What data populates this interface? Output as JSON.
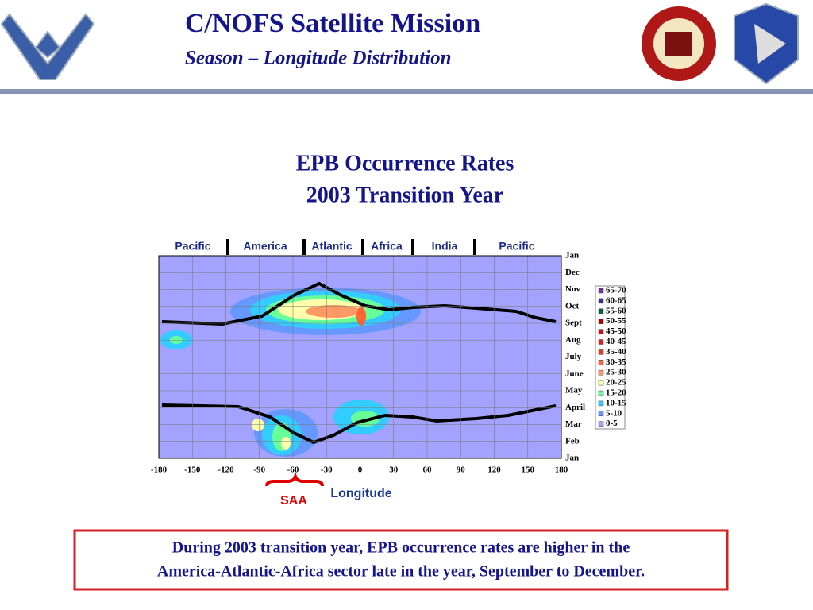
{
  "header": {
    "title": "C/NOFS Satellite Mission",
    "subtitle": "Season – Longitude Distribution"
  },
  "chart_data": {
    "type": "contour",
    "title": "EPB Occurrence Rates",
    "subtitle": "2003  Transition Year",
    "regions": [
      "Pacific",
      "America",
      "Atlantic",
      "Africa",
      "India",
      "Pacific"
    ],
    "xlim": [
      -180,
      180
    ],
    "xticks": [
      -180,
      -150,
      -120,
      -90,
      -60,
      -30,
      0,
      30,
      60,
      90,
      120,
      150,
      180
    ],
    "xlabel": "Longitude",
    "categories": [
      "Jan",
      "Feb",
      "Mar",
      "April",
      "May",
      "June",
      "July",
      "Aug",
      "Sept",
      "Oct",
      "Nov",
      "Dec",
      "Jan"
    ],
    "legend": [
      {
        "label": "65-70",
        "color": "#7030a0"
      },
      {
        "label": "60-65",
        "color": "#303090"
      },
      {
        "label": "55-60",
        "color": "#006633"
      },
      {
        "label": "50-55",
        "color": "#b00000"
      },
      {
        "label": "45-50",
        "color": "#c81010"
      },
      {
        "label": "40-45",
        "color": "#d82020"
      },
      {
        "label": "35-40",
        "color": "#e83a20"
      },
      {
        "label": "30-35",
        "color": "#ff6633"
      },
      {
        "label": "25-30",
        "color": "#ff9966"
      },
      {
        "label": "20-25",
        "color": "#ffffaa"
      },
      {
        "label": "15-20",
        "color": "#66ff99"
      },
      {
        "label": "10-15",
        "color": "#33ccff"
      },
      {
        "label": "5-10",
        "color": "#6699ff"
      },
      {
        "label": "0-5",
        "color": "#a3a3ff"
      }
    ],
    "grid": true,
    "annotation": "SAA"
  },
  "caption": [
    "During 2003 transition year, EPB occurrence rates are higher in the",
    "America-Atlantic-Africa sector late in the year, September to December."
  ]
}
